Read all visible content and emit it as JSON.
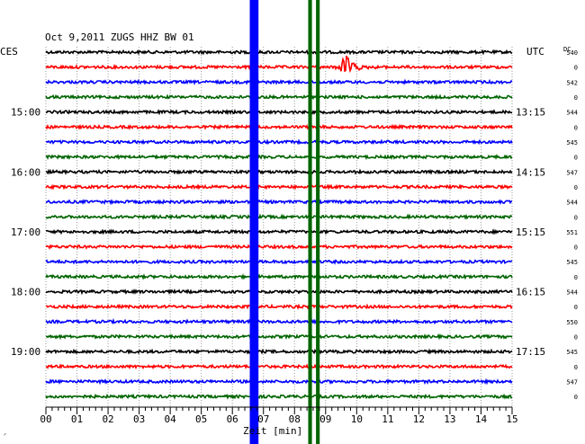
{
  "header": {
    "title": "Oct 9,2011   ZUGS HHZ BW 01",
    "left_tz": "CES",
    "right_tz": "UTC",
    "dc_label": "DC"
  },
  "chart_data": {
    "type": "line",
    "title": "Oct 9,2011   ZUGS HHZ BW 01",
    "xlabel": "Zeit [min]",
    "xlim": [
      0,
      15
    ],
    "x_ticks": [
      "00",
      "01",
      "02",
      "03",
      "04",
      "05",
      "06",
      "07",
      "08",
      "09",
      "10",
      "11",
      "12",
      "13",
      "14",
      "15"
    ],
    "trace_count": 24,
    "trace_colors": [
      "#000000",
      "#ff0000",
      "#0000ff",
      "#006400"
    ],
    "left_time_labels": [
      "15:00",
      "16:00",
      "17:00",
      "18:00",
      "19:00"
    ],
    "right_time_labels": [
      "13:15",
      "14:15",
      "15:15",
      "16:15",
      "17:15"
    ],
    "dc_values": [
      "540",
      "0",
      "542",
      "0",
      "544",
      "0",
      "545",
      "0",
      "547",
      "0",
      "544",
      "0",
      "551",
      "0",
      "545",
      "0",
      "544",
      "0",
      "550",
      "0",
      "545",
      "0",
      "547",
      "0"
    ],
    "events": [
      {
        "trace": 1,
        "x_min": 9.7,
        "color": "#ff0000",
        "note": "small local event"
      }
    ],
    "artifacts": [
      {
        "x_min": 6.7,
        "width_min": 0.28,
        "color": "#0000ff"
      },
      {
        "x_min": 8.5,
        "width_min": 0.12,
        "color": "#006400"
      },
      {
        "x_min": 8.75,
        "width_min": 0.12,
        "color": "#006400"
      }
    ]
  }
}
